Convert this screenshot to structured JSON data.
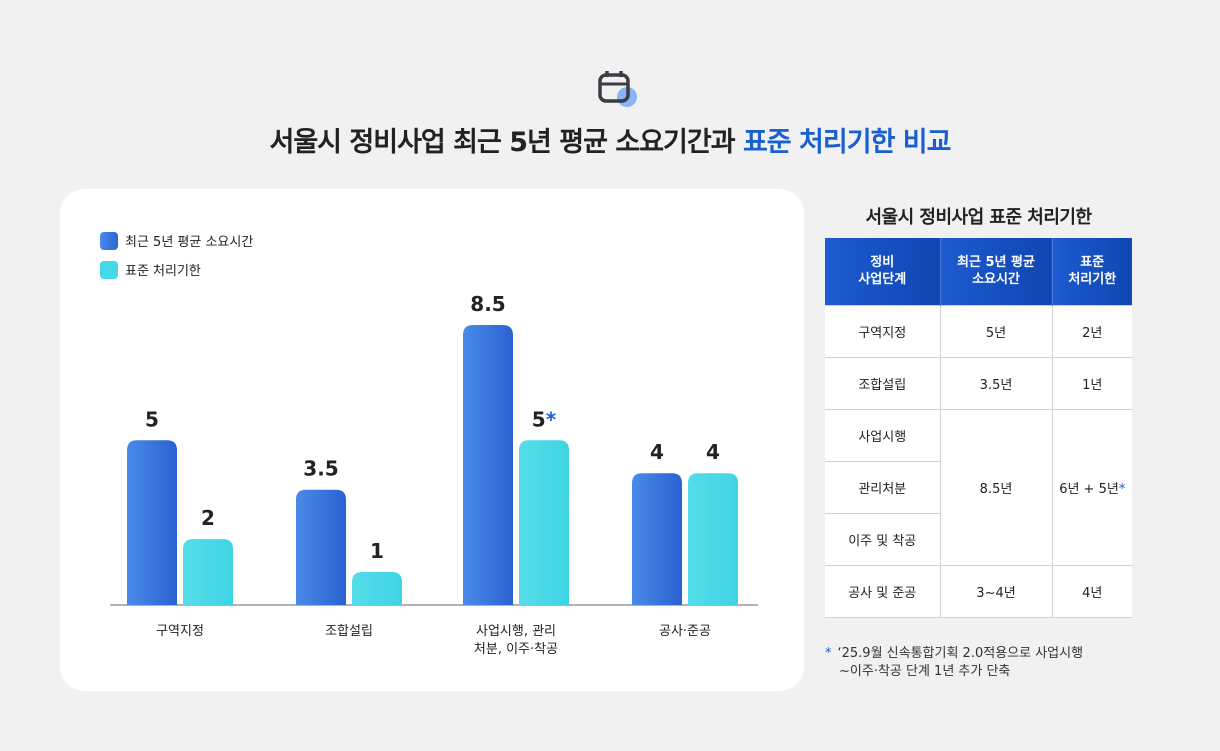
{
  "header": {
    "title_main": "서울시 정비사업 최근 5년 평균 소요기간과",
    "title_highlight": "표준 처리기한 비교",
    "icon": "calendar-icon"
  },
  "chart_data": {
    "type": "bar",
    "categories": [
      "구역지정",
      "조합설립",
      "사업시행, 관리\n처분, 이주·착공",
      "공사·준공"
    ],
    "series": [
      {
        "name": "최근 5년 평균 소요시간",
        "values": [
          5,
          3.5,
          8.5,
          4
        ],
        "labels": [
          "5",
          "3.5",
          "8.5",
          "4"
        ],
        "color": "#3a7be0"
      },
      {
        "name": "표준 처리기한",
        "values": [
          2,
          1,
          5,
          4
        ],
        "labels": [
          "2",
          "1",
          "5",
          "4"
        ],
        "color": "#45d8e6"
      }
    ],
    "asterisk_on": [
      1,
      2
    ],
    "ylim": [
      0,
      8.5
    ],
    "grid": false,
    "legend": "top-left"
  },
  "table": {
    "title": "서울시 정비사업 표준 처리기한",
    "headers": [
      "정비\n사업단계",
      "최근 5년 평균\n소요시간",
      "표준\n처리기한"
    ],
    "rows": {
      "r1": [
        "구역지정",
        "5년",
        "2년"
      ],
      "r2": [
        "조합설립",
        "3.5년",
        "1년"
      ],
      "r3": [
        "사업시행",
        "8.5년",
        "6년 + 5년"
      ],
      "r4": [
        "관리처분"
      ],
      "r5": [
        "이주 및 착공"
      ],
      "r6": [
        "공사 및 준공",
        "3~4년",
        "4년"
      ]
    },
    "asterisk": "*"
  },
  "footnote": {
    "mark": "*",
    "line1": "‘25.9월 신속통합기획 2.0적용으로 사업시행",
    "line2": "~이주·착공 단계 1년 추가 단축"
  }
}
